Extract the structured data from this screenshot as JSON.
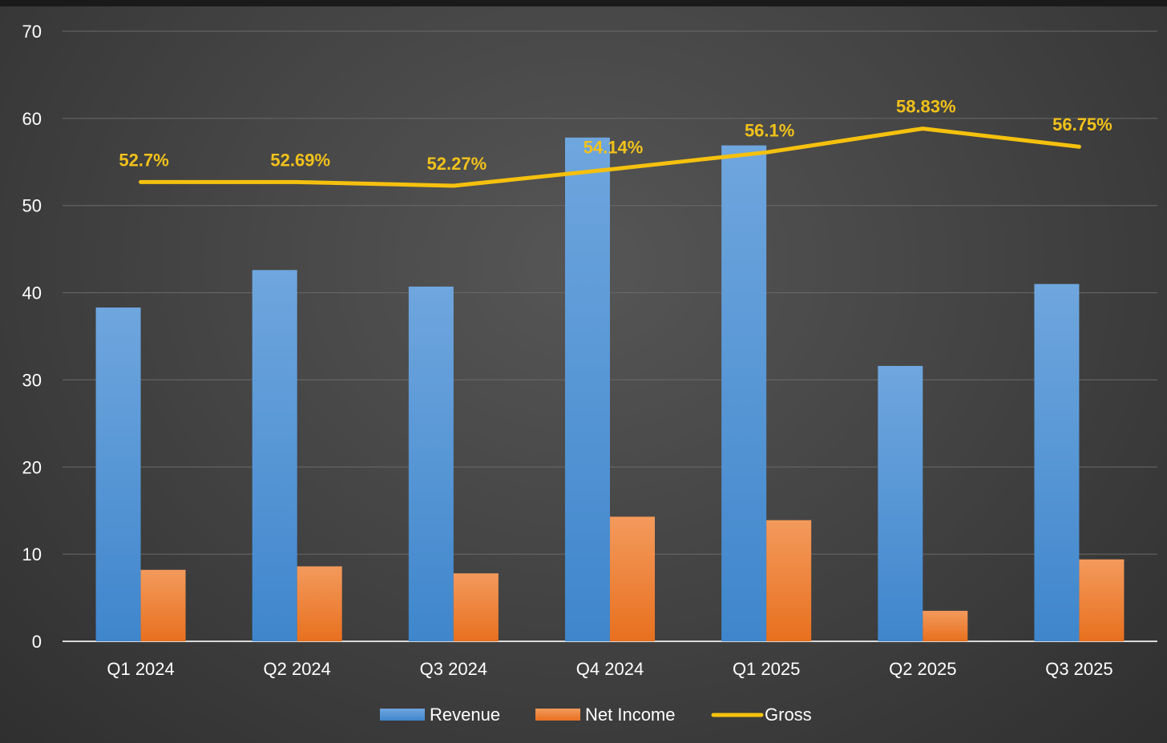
{
  "chart_data": {
    "type": "bar",
    "title": "",
    "xlabel": "",
    "ylabel": "",
    "ylim": [
      0,
      70
    ],
    "yticks": [
      "0",
      "10",
      "20",
      "30",
      "40",
      "50",
      "60",
      "70"
    ],
    "grid": true,
    "legend_position": "bottom",
    "categories": [
      "Q1 2024",
      "Q2 2024",
      "Q3 2024",
      "Q4 2024",
      "Q1 2025",
      "Q2 2025",
      "Q3 2025"
    ],
    "series": [
      {
        "name": "Revenue",
        "type": "bar",
        "color": "#5b9bd5",
        "values": [
          38.3,
          42.6,
          40.7,
          57.8,
          56.9,
          31.6,
          41.0
        ]
      },
      {
        "name": "Net Income",
        "type": "bar",
        "color": "#ed7d31",
        "values": [
          8.2,
          8.6,
          7.8,
          14.3,
          13.9,
          3.5,
          9.4
        ]
      },
      {
        "name": "Gross",
        "type": "line",
        "color": "#f5c10e",
        "values": [
          52.7,
          52.69,
          52.27,
          54.14,
          56.1,
          58.83,
          56.75
        ],
        "labels": [
          "52.7%",
          "52.69%",
          "52.27%",
          "54.14%",
          "56.1%",
          "58.83%",
          "56.75%"
        ]
      }
    ]
  }
}
